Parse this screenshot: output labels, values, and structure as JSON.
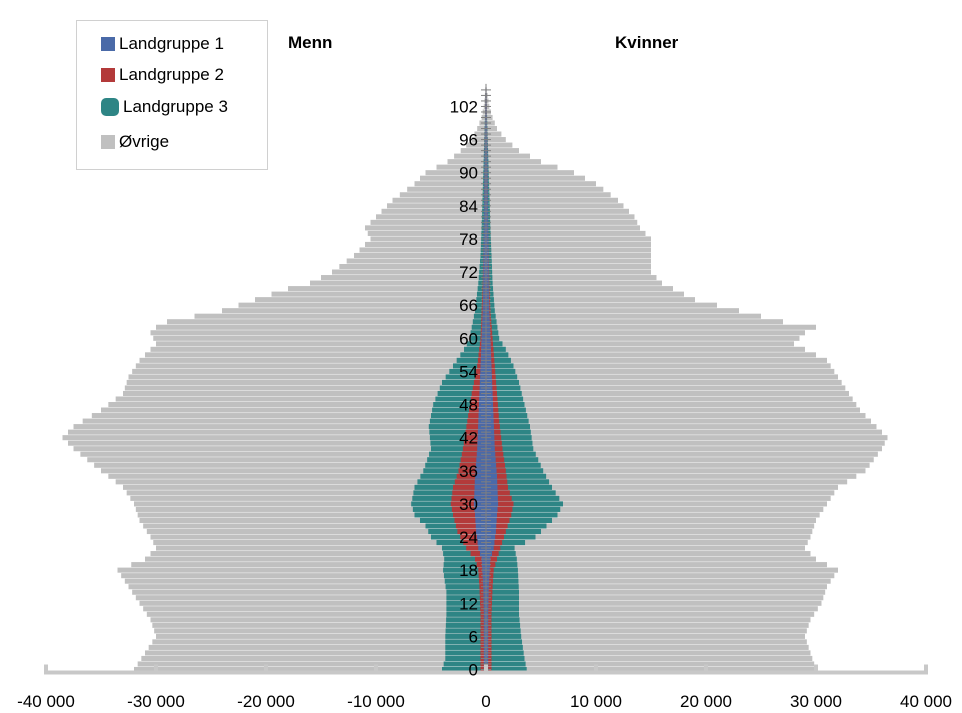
{
  "chart_data": {
    "type": "bar",
    "orientation": "horizontal-population-pyramid",
    "left_label": "Menn",
    "right_label": "Kvinner",
    "xlim": [
      -40000,
      40000
    ],
    "x_ticks": [
      {
        "value": -40000,
        "label": "-40 000"
      },
      {
        "value": -30000,
        "label": "-30 000"
      },
      {
        "value": -20000,
        "label": "-20 000"
      },
      {
        "value": -10000,
        "label": "-10 000"
      },
      {
        "value": 0,
        "label": "0"
      },
      {
        "value": 10000,
        "label": "10 000"
      },
      {
        "value": 20000,
        "label": "20 000"
      },
      {
        "value": 30000,
        "label": "30 000"
      },
      {
        "value": 40000,
        "label": "40 000"
      }
    ],
    "age_ticks": [
      {
        "value": 0,
        "label": "0"
      },
      {
        "value": 6,
        "label": "6"
      },
      {
        "value": 12,
        "label": "12"
      },
      {
        "value": 18,
        "label": "18"
      },
      {
        "value": 24,
        "label": "24"
      },
      {
        "value": 30,
        "label": "30"
      },
      {
        "value": 36,
        "label": "36"
      },
      {
        "value": 42,
        "label": "42"
      },
      {
        "value": 48,
        "label": "48"
      },
      {
        "value": 54,
        "label": "54"
      },
      {
        "value": 60,
        "label": "60"
      },
      {
        "value": 66,
        "label": "66"
      },
      {
        "value": 72,
        "label": "72"
      },
      {
        "value": 78,
        "label": "78"
      },
      {
        "value": 84,
        "label": "84"
      },
      {
        "value": 90,
        "label": "90"
      },
      {
        "value": 96,
        "label": "96"
      },
      {
        "value": 102,
        "label": "102"
      }
    ],
    "age_range": [
      0,
      105
    ],
    "legend": {
      "placement": "top-left",
      "items": [
        {
          "name": "Landgruppe 1",
          "color": "#4a6aa8"
        },
        {
          "name": "Landgruppe 2",
          "color": "#b33a3a"
        },
        {
          "name": "Landgruppe 3",
          "color": "#2e8585"
        },
        {
          "name": "Øvrige",
          "color": "#c0c0c0"
        }
      ]
    },
    "cumulative_profiles": {
      "men": {
        "landgruppe_1": [
          [
            0,
            200
          ],
          [
            5,
            200
          ],
          [
            10,
            200
          ],
          [
            15,
            250
          ],
          [
            20,
            400
          ],
          [
            22,
            700
          ],
          [
            25,
            900
          ],
          [
            28,
            1000
          ],
          [
            30,
            1100
          ],
          [
            35,
            1000
          ],
          [
            40,
            800
          ],
          [
            45,
            700
          ],
          [
            50,
            600
          ],
          [
            55,
            500
          ],
          [
            60,
            400
          ],
          [
            65,
            300
          ],
          [
            70,
            250
          ],
          [
            80,
            200
          ],
          [
            90,
            150
          ],
          [
            105,
            50
          ]
        ],
        "landgruppe_2": [
          [
            0,
            500
          ],
          [
            5,
            500
          ],
          [
            10,
            500
          ],
          [
            15,
            600
          ],
          [
            18,
            700
          ],
          [
            20,
            1000
          ],
          [
            22,
            1800
          ],
          [
            25,
            2600
          ],
          [
            28,
            3000
          ],
          [
            30,
            3200
          ],
          [
            33,
            3000
          ],
          [
            36,
            2500
          ],
          [
            40,
            2100
          ],
          [
            45,
            1700
          ],
          [
            50,
            1300
          ],
          [
            55,
            800
          ],
          [
            60,
            500
          ],
          [
            65,
            400
          ],
          [
            70,
            300
          ],
          [
            80,
            200
          ],
          [
            90,
            150
          ],
          [
            105,
            50
          ]
        ],
        "landgruppe_3": [
          [
            0,
            4000
          ],
          [
            2,
            3700
          ],
          [
            6,
            3700
          ],
          [
            10,
            3600
          ],
          [
            14,
            3600
          ],
          [
            18,
            3900
          ],
          [
            20,
            3800
          ],
          [
            22,
            4000
          ],
          [
            24,
            5000
          ],
          [
            26,
            5500
          ],
          [
            28,
            6500
          ],
          [
            30,
            6800
          ],
          [
            33,
            6500
          ],
          [
            36,
            5700
          ],
          [
            40,
            5000
          ],
          [
            44,
            5200
          ],
          [
            48,
            4800
          ],
          [
            52,
            4000
          ],
          [
            55,
            3000
          ],
          [
            58,
            2000
          ],
          [
            60,
            1500
          ],
          [
            65,
            1000
          ],
          [
            70,
            700
          ],
          [
            75,
            500
          ],
          [
            80,
            400
          ],
          [
            90,
            250
          ],
          [
            100,
            100
          ],
          [
            105,
            50
          ]
        ],
        "ovrige": [
          [
            0,
            32000
          ],
          [
            3,
            31000
          ],
          [
            6,
            30000
          ],
          [
            9,
            30500
          ],
          [
            12,
            31500
          ],
          [
            15,
            32500
          ],
          [
            18,
            33500
          ],
          [
            20,
            31000
          ],
          [
            22,
            30000
          ],
          [
            24,
            30500
          ],
          [
            27,
            31500
          ],
          [
            30,
            32000
          ],
          [
            33,
            33000
          ],
          [
            36,
            35000
          ],
          [
            40,
            37500
          ],
          [
            42,
            38500
          ],
          [
            44,
            37500
          ],
          [
            47,
            35000
          ],
          [
            50,
            33000
          ],
          [
            53,
            32500
          ],
          [
            56,
            31500
          ],
          [
            59,
            30000
          ],
          [
            61,
            30500
          ],
          [
            62,
            30000
          ],
          [
            63,
            29000
          ],
          [
            65,
            24000
          ],
          [
            67,
            21000
          ],
          [
            69,
            18000
          ],
          [
            70,
            16000
          ],
          [
            72,
            14000
          ],
          [
            75,
            12000
          ],
          [
            78,
            10500
          ],
          [
            80,
            11000
          ],
          [
            82,
            10000
          ],
          [
            85,
            8500
          ],
          [
            88,
            6500
          ],
          [
            90,
            5500
          ],
          [
            92,
            3500
          ],
          [
            94,
            2300
          ],
          [
            96,
            1300
          ],
          [
            98,
            800
          ],
          [
            100,
            400
          ],
          [
            102,
            200
          ],
          [
            104,
            100
          ],
          [
            105,
            50
          ]
        ]
      },
      "women": {
        "landgruppe_1": [
          [
            0,
            200
          ],
          [
            5,
            200
          ],
          [
            10,
            200
          ],
          [
            15,
            250
          ],
          [
            20,
            400
          ],
          [
            22,
            700
          ],
          [
            25,
            900
          ],
          [
            28,
            1000
          ],
          [
            30,
            1100
          ],
          [
            35,
            1000
          ],
          [
            40,
            800
          ],
          [
            45,
            700
          ],
          [
            50,
            600
          ],
          [
            55,
            500
          ],
          [
            60,
            400
          ],
          [
            65,
            300
          ],
          [
            70,
            250
          ],
          [
            80,
            200
          ],
          [
            90,
            150
          ],
          [
            105,
            50
          ]
        ],
        "landgruppe_2": [
          [
            0,
            500
          ],
          [
            5,
            500
          ],
          [
            10,
            500
          ],
          [
            15,
            600
          ],
          [
            18,
            700
          ],
          [
            20,
            1000
          ],
          [
            22,
            1300
          ],
          [
            25,
            1800
          ],
          [
            28,
            2300
          ],
          [
            30,
            2500
          ],
          [
            33,
            2000
          ],
          [
            36,
            1800
          ],
          [
            40,
            1500
          ],
          [
            45,
            1200
          ],
          [
            50,
            1000
          ],
          [
            55,
            800
          ],
          [
            60,
            600
          ],
          [
            65,
            400
          ],
          [
            70,
            300
          ],
          [
            80,
            200
          ],
          [
            90,
            150
          ],
          [
            105,
            50
          ]
        ],
        "landgruppe_3": [
          [
            0,
            3700
          ],
          [
            2,
            3500
          ],
          [
            6,
            3200
          ],
          [
            10,
            3000
          ],
          [
            14,
            3000
          ],
          [
            18,
            2900
          ],
          [
            20,
            2800
          ],
          [
            22,
            2600
          ],
          [
            24,
            4500
          ],
          [
            26,
            5500
          ],
          [
            28,
            6500
          ],
          [
            30,
            7000
          ],
          [
            33,
            6000
          ],
          [
            36,
            5200
          ],
          [
            40,
            4300
          ],
          [
            44,
            4000
          ],
          [
            48,
            3500
          ],
          [
            52,
            3000
          ],
          [
            55,
            2500
          ],
          [
            58,
            1800
          ],
          [
            60,
            1200
          ],
          [
            65,
            800
          ],
          [
            70,
            600
          ],
          [
            75,
            500
          ],
          [
            80,
            400
          ],
          [
            90,
            250
          ],
          [
            100,
            100
          ],
          [
            105,
            50
          ]
        ],
        "ovrige": [
          [
            0,
            30000
          ],
          [
            3,
            29500
          ],
          [
            6,
            29000
          ],
          [
            9,
            29500
          ],
          [
            12,
            30500
          ],
          [
            15,
            31000
          ],
          [
            18,
            32000
          ],
          [
            20,
            30000
          ],
          [
            22,
            29000
          ],
          [
            24,
            29500
          ],
          [
            27,
            30000
          ],
          [
            30,
            31000
          ],
          [
            33,
            32000
          ],
          [
            36,
            34500
          ],
          [
            40,
            36000
          ],
          [
            42,
            36500
          ],
          [
            44,
            35500
          ],
          [
            47,
            34000
          ],
          [
            50,
            33000
          ],
          [
            53,
            32000
          ],
          [
            56,
            31000
          ],
          [
            59,
            28000
          ],
          [
            61,
            29000
          ],
          [
            62,
            30000
          ],
          [
            63,
            27000
          ],
          [
            65,
            23000
          ],
          [
            67,
            19000
          ],
          [
            69,
            17000
          ],
          [
            70,
            16000
          ],
          [
            72,
            15000
          ],
          [
            75,
            15000
          ],
          [
            78,
            15000
          ],
          [
            80,
            14000
          ],
          [
            82,
            13500
          ],
          [
            85,
            12000
          ],
          [
            88,
            10000
          ],
          [
            90,
            8000
          ],
          [
            92,
            5000
          ],
          [
            94,
            3000
          ],
          [
            96,
            1800
          ],
          [
            98,
            1000
          ],
          [
            100,
            600
          ],
          [
            102,
            300
          ],
          [
            104,
            150
          ],
          [
            105,
            50
          ]
        ]
      }
    }
  }
}
